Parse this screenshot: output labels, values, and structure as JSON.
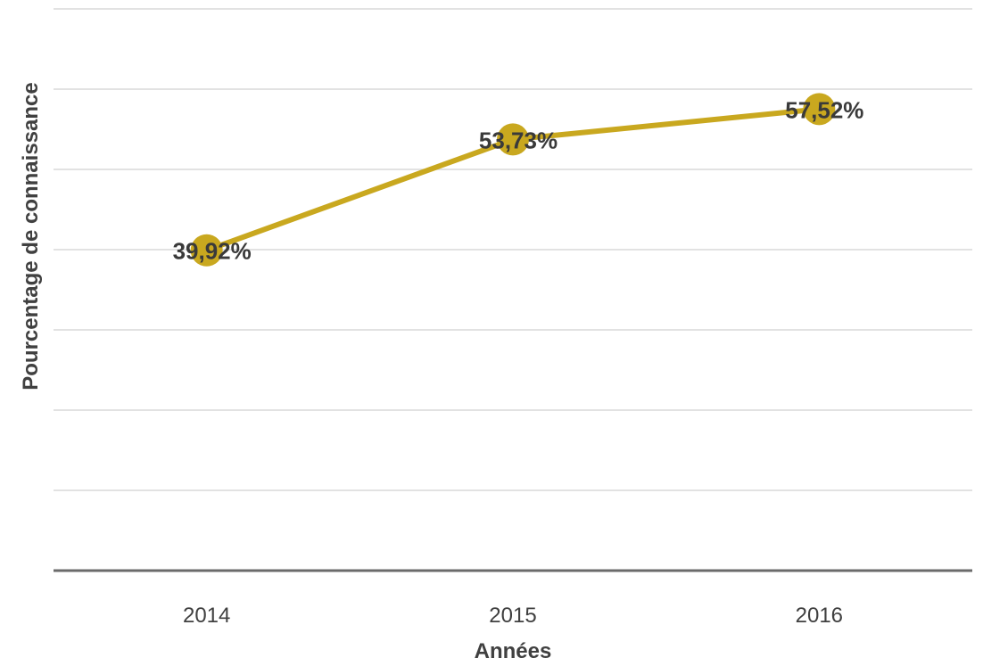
{
  "chart_data": {
    "type": "line",
    "categories": [
      "2014",
      "2015",
      "2016"
    ],
    "series": [
      {
        "values": [
          39.92,
          53.73,
          57.52
        ],
        "data_labels": [
          "39,92%",
          "53,73%",
          "57,52%"
        ],
        "color": "#c9a81f"
      }
    ],
    "title": "",
    "xlabel": "Années",
    "ylabel": "Pourcentage de connaissance",
    "ylim": [
      0,
      70
    ],
    "y_gridline_step": 10,
    "y_tick_labels_visible": false,
    "grid": true,
    "legend": "none"
  }
}
